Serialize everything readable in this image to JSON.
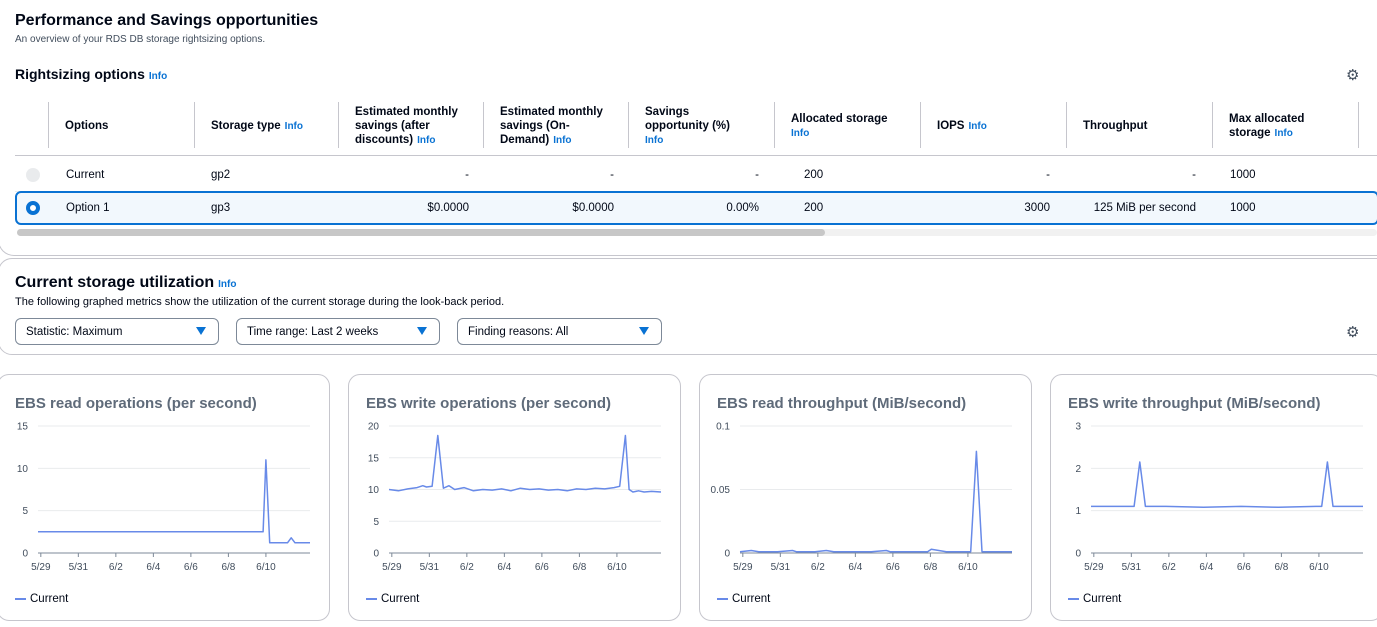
{
  "header": {
    "title": "Performance and Savings opportunities",
    "subtitle": "An overview of your RDS DB storage rightsizing options."
  },
  "info_label": "Info",
  "rightsizing": {
    "title": "Rightsizing options",
    "columns": [
      {
        "line1": "Options",
        "line2": "",
        "line3": "",
        "info": false
      },
      {
        "line1": "Storage type",
        "line2": "",
        "line3": "",
        "info": true,
        "info_inline": true
      },
      {
        "line1": "Estimated monthly",
        "line2": "savings (after",
        "line3": "discounts)",
        "info": true
      },
      {
        "line1": "Estimated monthly",
        "line2": "savings (On-",
        "line3": "Demand)",
        "info": true
      },
      {
        "line1": "Savings",
        "line2": "opportunity (%)",
        "line3": "",
        "info": true
      },
      {
        "line1": "Allocated storage",
        "line2": "",
        "line3": "",
        "info": true
      },
      {
        "line1": "IOPS",
        "line2": "",
        "line3": "",
        "info": true,
        "info_inline": true
      },
      {
        "line1": "Throughput",
        "line2": "",
        "line3": "",
        "info": false
      },
      {
        "line1": "Max allocated",
        "line2": "storage",
        "line3": "",
        "info": true,
        "info_inline_line2": true
      }
    ],
    "rows": [
      {
        "option": "Current",
        "storage_type": "gp2",
        "savings_after": "-",
        "savings_ondemand": "-",
        "savings_pct": "-",
        "allocated": "200",
        "iops": "-",
        "throughput": "-",
        "max_allocated": "1000",
        "selected": false
      },
      {
        "option": "Option 1",
        "storage_type": "gp3",
        "savings_after": "$0.0000",
        "savings_ondemand": "$0.0000",
        "savings_pct": "0.00%",
        "allocated": "200",
        "iops": "3000",
        "throughput": "125 MiB per second",
        "max_allocated": "1000",
        "selected": true
      }
    ]
  },
  "utilization": {
    "title": "Current storage utilization",
    "subtitle": "The following graphed metrics show the utilization of the current storage during the look-back period.",
    "filters": {
      "statistic": "Statistic: Maximum",
      "time_range": "Time range: Last 2 weeks",
      "finding_reasons": "Finding reasons: All"
    }
  },
  "icons": {
    "settings": "gear-icon",
    "dropdown": "caret-down-icon"
  },
  "colors": {
    "accent": "#0972d3",
    "series": "#688ae8"
  },
  "chart_data": [
    {
      "type": "line",
      "title": "EBS read operations (per second)",
      "x_ticks": [
        "5/29",
        "5/31",
        "6/2",
        "6/4",
        "6/6",
        "6/8",
        "6/10"
      ],
      "y_ticks": [
        "0",
        "5",
        "10",
        "15"
      ],
      "ylim": [
        0,
        15
      ],
      "legend": "bottom-left",
      "series": [
        {
          "name": "Current",
          "x": [
            0,
            1,
            2,
            3,
            4,
            5,
            6,
            7,
            8,
            9,
            10,
            11,
            12,
            12.15,
            12.35,
            12.6,
            13,
            13.3,
            13.5,
            13.7,
            14,
            14.5
          ],
          "values": [
            2.5,
            2.5,
            2.5,
            2.5,
            2.5,
            2.5,
            2.5,
            2.5,
            2.5,
            2.5,
            2.5,
            2.5,
            2.5,
            11,
            1.2,
            1.2,
            1.2,
            1.2,
            1.8,
            1.2,
            1.2,
            1.2
          ]
        }
      ]
    },
    {
      "type": "line",
      "title": "EBS write operations (per second)",
      "x_ticks": [
        "5/29",
        "5/31",
        "6/2",
        "6/4",
        "6/6",
        "6/8",
        "6/10"
      ],
      "y_ticks": [
        "0",
        "5",
        "10",
        "15",
        "20"
      ],
      "ylim": [
        0,
        20
      ],
      "legend": "bottom-left",
      "series": [
        {
          "name": "Current",
          "x": [
            0,
            0.5,
            1,
            1.5,
            1.8,
            2,
            2.3,
            2.6,
            2.9,
            3.2,
            3.5,
            4,
            4.5,
            5,
            5.5,
            6,
            6.5,
            7,
            7.5,
            8,
            8.5,
            9,
            9.5,
            10,
            10.5,
            11,
            11.5,
            12,
            12.3,
            12.6,
            12.8,
            13,
            13.3,
            13.6,
            14,
            14.5
          ],
          "values": [
            10,
            9.8,
            10.1,
            10.3,
            10.6,
            10.4,
            10.5,
            18.5,
            10.2,
            10.6,
            10,
            10.3,
            9.8,
            10,
            9.9,
            10.1,
            9.8,
            10.2,
            10,
            10.1,
            9.9,
            10,
            9.8,
            10.1,
            10,
            10.2,
            10.1,
            10.3,
            10.5,
            18.5,
            10,
            9.6,
            9.8,
            9.6,
            9.7,
            9.6
          ]
        }
      ]
    },
    {
      "type": "line",
      "title": "EBS read throughput (MiB/second)",
      "x_ticks": [
        "5/29",
        "5/31",
        "6/2",
        "6/4",
        "6/6",
        "6/8",
        "6/10"
      ],
      "y_ticks": [
        "0",
        "0.05",
        "0.1"
      ],
      "ylim": [
        0,
        0.1
      ],
      "legend": "bottom-left",
      "series": [
        {
          "name": "Current",
          "x": [
            0,
            0.6,
            1,
            2,
            2.8,
            3,
            4,
            4.6,
            5,
            6,
            7,
            7.8,
            8,
            9,
            10,
            10.2,
            11,
            12,
            12.3,
            12.6,
            12.9,
            13.2,
            14,
            14.5
          ],
          "values": [
            0.001,
            0.002,
            0.001,
            0.001,
            0.002,
            0.001,
            0.001,
            0.002,
            0.001,
            0.001,
            0.001,
            0.002,
            0.001,
            0.001,
            0.001,
            0.003,
            0.001,
            0.001,
            0.001,
            0.08,
            0.001,
            0.001,
            0.001,
            0.001
          ]
        }
      ]
    },
    {
      "type": "line",
      "title": "EBS write throughput (MiB/second)",
      "x_ticks": [
        "5/29",
        "5/31",
        "6/2",
        "6/4",
        "6/6",
        "6/8",
        "6/10"
      ],
      "y_ticks": [
        "0",
        "1",
        "2",
        "3"
      ],
      "ylim": [
        0,
        3
      ],
      "legend": "bottom-left",
      "series": [
        {
          "name": "Current",
          "x": [
            0,
            1,
            2,
            2.3,
            2.6,
            2.9,
            4,
            6,
            8,
            10,
            12,
            12.3,
            12.6,
            12.9,
            14,
            14.5
          ],
          "values": [
            1.1,
            1.1,
            1.1,
            1.1,
            2.15,
            1.1,
            1.1,
            1.08,
            1.1,
            1.08,
            1.1,
            1.1,
            2.15,
            1.1,
            1.1,
            1.1
          ]
        }
      ]
    }
  ]
}
